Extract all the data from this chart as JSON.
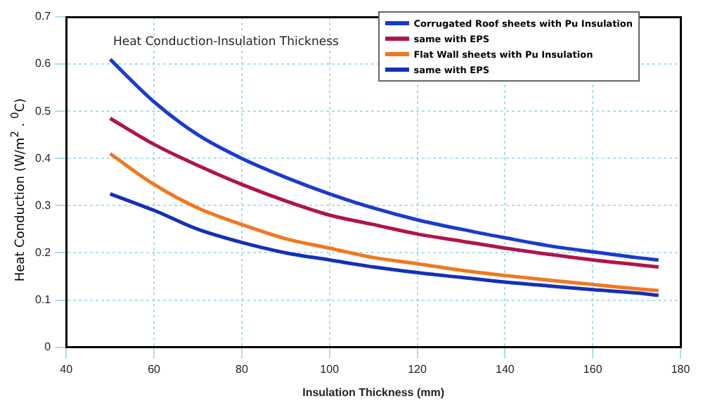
{
  "chart_data": {
    "type": "line",
    "title": "Heat Conduction-Insulation Thickness",
    "xlabel": "Insulation Thickness (mm)",
    "ylabel": "Heat Conduction (W/m$^{2}$ . $^{0}$C)",
    "x": [
      50,
      60,
      70,
      80,
      90,
      100,
      110,
      120,
      130,
      140,
      150,
      160,
      170,
      175
    ],
    "series": [
      {
        "name": "Corrugated Roof sheets with Pu Insulation",
        "color": "#1a3ccc",
        "values": [
          0.61,
          0.52,
          0.45,
          0.4,
          0.36,
          0.325,
          0.295,
          0.27,
          0.25,
          0.232,
          0.215,
          0.202,
          0.19,
          0.185
        ]
      },
      {
        "name": "same with EPS",
        "color": "#b0144a",
        "values": [
          0.485,
          0.43,
          0.385,
          0.345,
          0.31,
          0.28,
          0.26,
          0.24,
          0.225,
          0.21,
          0.197,
          0.185,
          0.175,
          0.17
        ]
      },
      {
        "name": "Flat Wall sheets with Pu Insulation",
        "color": "#f07820",
        "values": [
          0.41,
          0.345,
          0.295,
          0.26,
          0.23,
          0.21,
          0.19,
          0.177,
          0.163,
          0.152,
          0.142,
          0.133,
          0.124,
          0.12
        ]
      },
      {
        "name": "same with EPS",
        "color": "#1430b8",
        "values": [
          0.325,
          0.29,
          0.25,
          0.222,
          0.2,
          0.185,
          0.17,
          0.158,
          0.148,
          0.138,
          0.13,
          0.122,
          0.115,
          0.11
        ]
      }
    ],
    "xlim": [
      40,
      180
    ],
    "xticks": [
      40,
      60,
      80,
      100,
      120,
      140,
      160,
      180
    ],
    "ylim": [
      0,
      0.7
    ],
    "yticks": [
      0,
      0.1,
      0.2,
      0.3,
      0.4,
      0.5,
      0.6,
      0.7
    ],
    "grid": true,
    "legend": "top right",
    "marker": "none",
    "line_style": "solid"
  }
}
